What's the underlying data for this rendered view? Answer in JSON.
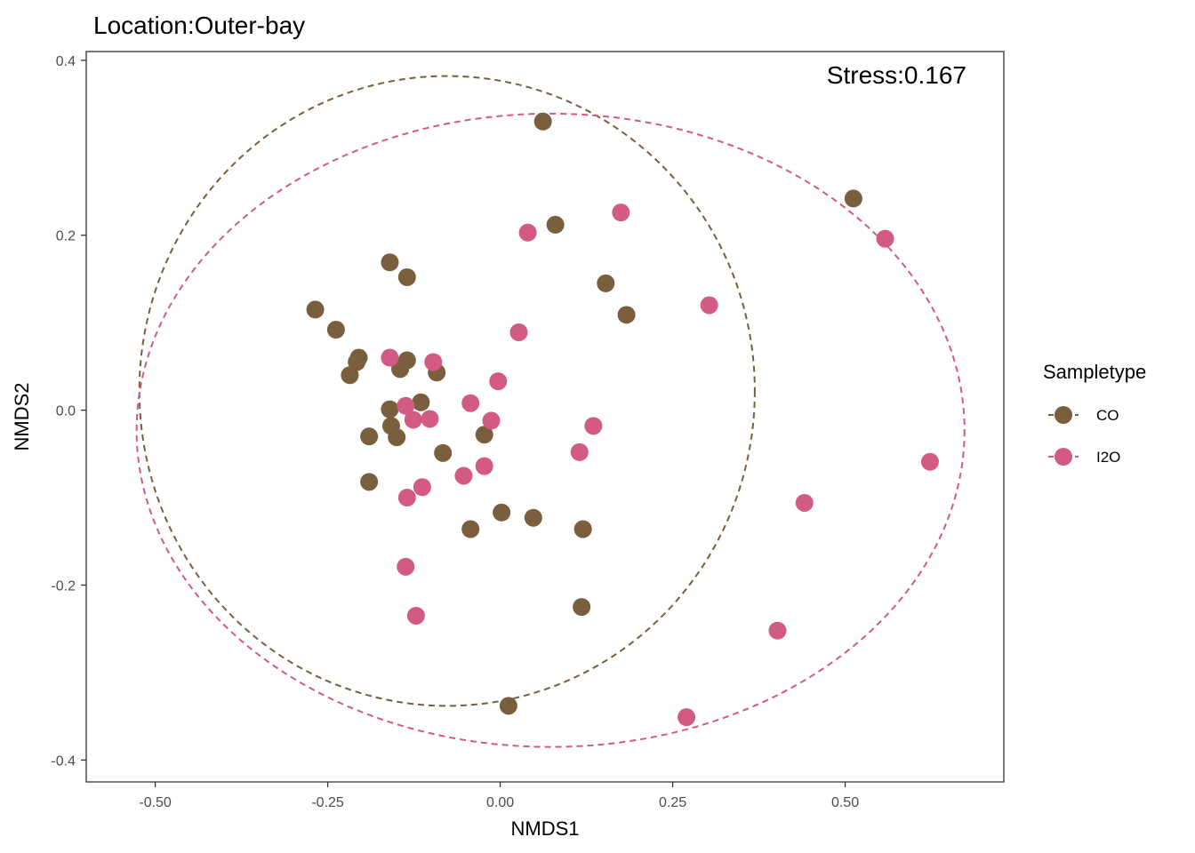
{
  "chart_data": {
    "type": "scatter",
    "title": "Location:Outer-bay",
    "annotation": "Stress:0.167",
    "xlabel": "NMDS1",
    "ylabel": "NMDS2",
    "xlim": [
      -0.6,
      0.73
    ],
    "ylim": [
      -0.425,
      0.41
    ],
    "xticks": [
      -0.5,
      -0.25,
      0.0,
      0.25,
      0.5
    ],
    "xtick_labels": [
      "-0.50",
      "-0.25",
      "0.00",
      "0.25",
      "0.50"
    ],
    "yticks": [
      -0.4,
      -0.2,
      0.0,
      0.2,
      0.4
    ],
    "ytick_labels": [
      "-0.4",
      "-0.2",
      "0.0",
      "0.2",
      "0.4"
    ],
    "grid": false,
    "legend": {
      "title": "Sampletype",
      "position": "right"
    },
    "series": [
      {
        "name": "CO",
        "color": "#7a5f3e",
        "points": [
          [
            0.062,
            0.33
          ],
          [
            0.08,
            0.212
          ],
          [
            0.512,
            0.242
          ],
          [
            -0.16,
            0.169
          ],
          [
            -0.135,
            0.152
          ],
          [
            0.153,
            0.145
          ],
          [
            0.183,
            0.109
          ],
          [
            -0.268,
            0.115
          ],
          [
            -0.238,
            0.092
          ],
          [
            -0.205,
            0.06
          ],
          [
            -0.208,
            0.055
          ],
          [
            -0.135,
            0.057
          ],
          [
            -0.145,
            0.047
          ],
          [
            -0.092,
            0.043
          ],
          [
            -0.218,
            0.04
          ],
          [
            -0.115,
            0.009
          ],
          [
            -0.16,
            0.001
          ],
          [
            -0.158,
            -0.018
          ],
          [
            -0.15,
            -0.031
          ],
          [
            -0.19,
            -0.03
          ],
          [
            -0.023,
            -0.028
          ],
          [
            -0.083,
            -0.049
          ],
          [
            -0.19,
            -0.082
          ],
          [
            0.002,
            -0.117
          ],
          [
            0.048,
            -0.123
          ],
          [
            -0.043,
            -0.136
          ],
          [
            0.12,
            -0.136
          ],
          [
            0.118,
            -0.225
          ],
          [
            0.012,
            -0.338
          ]
        ],
        "ellipse": {
          "center": [
            -0.077,
            0.022
          ],
          "rx": 0.446,
          "ry": 0.36
        }
      },
      {
        "name": "I2O",
        "color": "#d35a84",
        "points": [
          [
            0.04,
            0.203
          ],
          [
            0.175,
            0.226
          ],
          [
            0.558,
            0.196
          ],
          [
            0.303,
            0.12
          ],
          [
            0.027,
            0.089
          ],
          [
            -0.16,
            0.06
          ],
          [
            -0.097,
            0.055
          ],
          [
            -0.003,
            0.033
          ],
          [
            -0.137,
            0.005
          ],
          [
            -0.043,
            0.008
          ],
          [
            -0.126,
            -0.011
          ],
          [
            -0.102,
            -0.01
          ],
          [
            -0.013,
            -0.012
          ],
          [
            0.135,
            -0.018
          ],
          [
            0.115,
            -0.048
          ],
          [
            0.623,
            -0.059
          ],
          [
            -0.053,
            -0.075
          ],
          [
            -0.023,
            -0.064
          ],
          [
            -0.113,
            -0.088
          ],
          [
            -0.135,
            -0.1
          ],
          [
            0.441,
            -0.106
          ],
          [
            -0.137,
            -0.179
          ],
          [
            -0.122,
            -0.235
          ],
          [
            0.402,
            -0.252
          ],
          [
            0.27,
            -0.351
          ]
        ],
        "ellipse": {
          "center": [
            0.073,
            -0.023
          ],
          "rx": 0.6,
          "ry": 0.362
        }
      }
    ]
  }
}
